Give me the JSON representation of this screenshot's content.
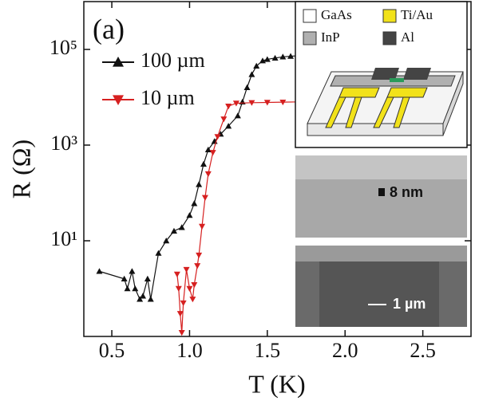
{
  "chart_data": {
    "type": "line",
    "log_y": true,
    "x_label": "T (K)",
    "y_label": "R (Ω)",
    "xlim": [
      0.32,
      2.81
    ],
    "xticks": [
      0.5,
      {
        "value": 1,
        "label": "1.0"
      },
      1.5,
      {
        "value": 2,
        "label": "2.0"
      },
      2.5
    ],
    "ylim": [
      0.1,
      1000000
    ],
    "yticks": [
      {
        "value": 10,
        "label": "10¹"
      },
      {
        "value": 1000,
        "label": "10³"
      },
      {
        "value": 100000,
        "label": "10⁵"
      }
    ],
    "series": [
      {
        "name": "100 µm",
        "color": "#111111",
        "marker": "triangle-up",
        "x": [
          0.42,
          0.58,
          0.6,
          0.63,
          0.65,
          0.68,
          0.7,
          0.73,
          0.75,
          0.8,
          0.85,
          0.9,
          0.95,
          1.0,
          1.03,
          1.06,
          1.09,
          1.12,
          1.16,
          1.2,
          1.25,
          1.31,
          1.34,
          1.37,
          1.4,
          1.43,
          1.47,
          1.5,
          1.55,
          1.6,
          1.65,
          1.7,
          1.75,
          1.8,
          1.9
        ],
        "values": [
          2.3,
          1.6,
          1.0,
          2.3,
          1.0,
          0.6,
          0.7,
          1.6,
          0.6,
          5.5,
          10,
          16,
          19,
          34,
          60,
          150,
          400,
          800,
          1200,
          1700,
          2500,
          4100,
          8000,
          16000,
          30000,
          45000,
          58000,
          62000,
          66000,
          70000,
          72000,
          74000,
          75000,
          76000,
          77000
        ]
      },
      {
        "name": "10 µm",
        "color": "#d62020",
        "marker": "triangle-down",
        "x": [
          0.92,
          0.93,
          0.94,
          0.95,
          0.96,
          0.98,
          1.0,
          1.02,
          1.03,
          1.05,
          1.06,
          1.08,
          1.1,
          1.12,
          1.15,
          1.18,
          1.22,
          1.25,
          1.3,
          1.4,
          1.5,
          1.6,
          1.7,
          1.8,
          2.0,
          2.3,
          2.6
        ],
        "values": [
          2.0,
          1.0,
          0.3,
          0.12,
          0.5,
          2.5,
          1.0,
          0.6,
          1.2,
          3,
          5,
          20,
          80,
          250,
          700,
          1500,
          3500,
          6500,
          7500,
          7700,
          7800,
          7900,
          8000,
          8000,
          8000,
          8000,
          8000
        ]
      }
    ],
    "annotations": [
      "(a)",
      "8 nm",
      "1 µm"
    ],
    "inset_legend": [
      {
        "name": "GaAs",
        "color": "#ffffff"
      },
      {
        "name": "Ti/Au",
        "color": "#f2e21a"
      },
      {
        "name": "InP",
        "color": "#b0b0b0"
      },
      {
        "name": "Al",
        "color": "#444444"
      }
    ]
  }
}
